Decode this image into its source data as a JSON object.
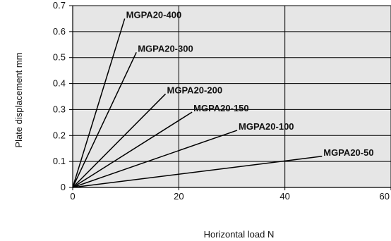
{
  "chart_data": {
    "type": "line",
    "title": "",
    "xlabel": "Horizontal load  N",
    "ylabel": "Plate displacement  mm",
    "xlim": [
      0,
      60
    ],
    "ylim": [
      0,
      0.7
    ],
    "x_ticks": [
      "0",
      "20",
      "40",
      "60"
    ],
    "y_ticks": [
      "0",
      "0.1",
      "0.2",
      "0.3",
      "0.4",
      "0.5",
      "0.6",
      "0.7"
    ],
    "grid": true,
    "background_color": "#e6e6e6",
    "line_color": "#000000",
    "series": [
      {
        "name": "MGPA20-400",
        "x": [
          0,
          9.8
        ],
        "y": [
          0,
          0.65
        ]
      },
      {
        "name": "MGPA20-300",
        "x": [
          0,
          12.0
        ],
        "y": [
          0,
          0.52
        ]
      },
      {
        "name": "MGPA20-200",
        "x": [
          0,
          17.5
        ],
        "y": [
          0,
          0.36
        ]
      },
      {
        "name": "MGPA20-150",
        "x": [
          0,
          22.5
        ],
        "y": [
          0,
          0.29
        ]
      },
      {
        "name": "MGPA20-100",
        "x": [
          0,
          31.0
        ],
        "y": [
          0,
          0.22
        ]
      },
      {
        "name": "MGPA20-50",
        "x": [
          0,
          47.0
        ],
        "y": [
          0,
          0.12
        ]
      }
    ]
  }
}
